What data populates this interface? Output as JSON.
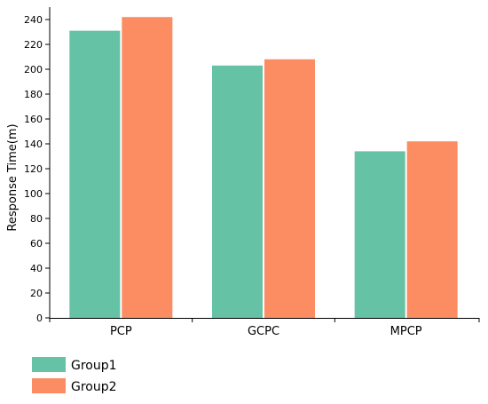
{
  "chart_data": {
    "type": "bar",
    "ylabel": "Response Time(m)",
    "xlabel": "",
    "categories": [
      "PCP",
      "GCPC",
      "MPCP"
    ],
    "series": [
      {
        "name": "Group1",
        "values": [
          231,
          203,
          134
        ],
        "color": "#66c2a5"
      },
      {
        "name": "Group2",
        "values": [
          242,
          208,
          142
        ],
        "color": "#fc8d62"
      }
    ],
    "ylim": [
      0,
      250
    ],
    "yticks": [
      0,
      20,
      40,
      60,
      80,
      100,
      120,
      140,
      160,
      180,
      200,
      220,
      240
    ],
    "grid": false,
    "legend_position": "bottom-left"
  }
}
